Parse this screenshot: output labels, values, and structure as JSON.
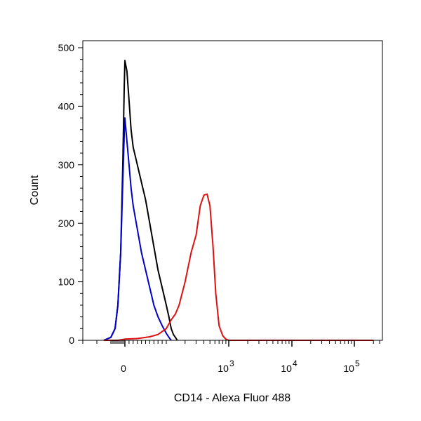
{
  "chart_data": {
    "type": "line",
    "title": "",
    "xlabel": "CD14 - Alexa Fluor 488",
    "ylabel": "Count",
    "x_scale": "biexponential (linear near 0, log above ~10^2)",
    "xlim": [
      -300,
      250000
    ],
    "ylim": [
      0,
      510
    ],
    "x_ticks": [
      {
        "value": 0,
        "label": "0"
      },
      {
        "value": 1000,
        "label": "10",
        "exp": "3"
      },
      {
        "value": 10000,
        "label": "10",
        "exp": "4"
      },
      {
        "value": 100000,
        "label": "10",
        "exp": "5"
      }
    ],
    "y_ticks": [
      0,
      100,
      200,
      300,
      400,
      500
    ],
    "grid": false,
    "legend": "none",
    "series": [
      {
        "color": "#000000",
        "points": [
          [
            -150,
            0
          ],
          [
            -100,
            5
          ],
          [
            -70,
            20
          ],
          [
            -50,
            60
          ],
          [
            -30,
            150
          ],
          [
            -15,
            300
          ],
          [
            -5,
            430
          ],
          [
            0,
            478
          ],
          [
            5,
            460
          ],
          [
            10,
            410
          ],
          [
            15,
            360
          ],
          [
            20,
            330
          ],
          [
            30,
            300
          ],
          [
            40,
            270
          ],
          [
            50,
            240
          ],
          [
            60,
            200
          ],
          [
            70,
            160
          ],
          [
            80,
            120
          ],
          [
            90,
            90
          ],
          [
            100,
            60
          ],
          [
            110,
            40
          ],
          [
            120,
            20
          ],
          [
            130,
            10
          ],
          [
            140,
            5
          ],
          [
            150,
            0
          ]
        ]
      },
      {
        "color": "#0000cc",
        "points": [
          [
            -150,
            0
          ],
          [
            -100,
            5
          ],
          [
            -70,
            20
          ],
          [
            -50,
            60
          ],
          [
            -30,
            150
          ],
          [
            -15,
            270
          ],
          [
            -5,
            350
          ],
          [
            0,
            380
          ],
          [
            5,
            340
          ],
          [
            10,
            300
          ],
          [
            15,
            260
          ],
          [
            20,
            230
          ],
          [
            30,
            190
          ],
          [
            40,
            150
          ],
          [
            50,
            120
          ],
          [
            60,
            90
          ],
          [
            70,
            60
          ],
          [
            80,
            40
          ],
          [
            90,
            25
          ],
          [
            100,
            12
          ],
          [
            110,
            5
          ],
          [
            120,
            0
          ]
        ]
      },
      {
        "color": "#dd1111",
        "points": [
          [
            -150,
            0
          ],
          [
            -50,
            0
          ],
          [
            0,
            2
          ],
          [
            30,
            3
          ],
          [
            60,
            6
          ],
          [
            80,
            10
          ],
          [
            100,
            20
          ],
          [
            120,
            35
          ],
          [
            140,
            45
          ],
          [
            160,
            60
          ],
          [
            200,
            100
          ],
          [
            250,
            150
          ],
          [
            300,
            180
          ],
          [
            350,
            230
          ],
          [
            400,
            248
          ],
          [
            450,
            250
          ],
          [
            500,
            230
          ],
          [
            560,
            160
          ],
          [
            620,
            80
          ],
          [
            700,
            25
          ],
          [
            800,
            8
          ],
          [
            900,
            2
          ],
          [
            1000,
            0
          ],
          [
            200000,
            0
          ]
        ]
      }
    ]
  }
}
